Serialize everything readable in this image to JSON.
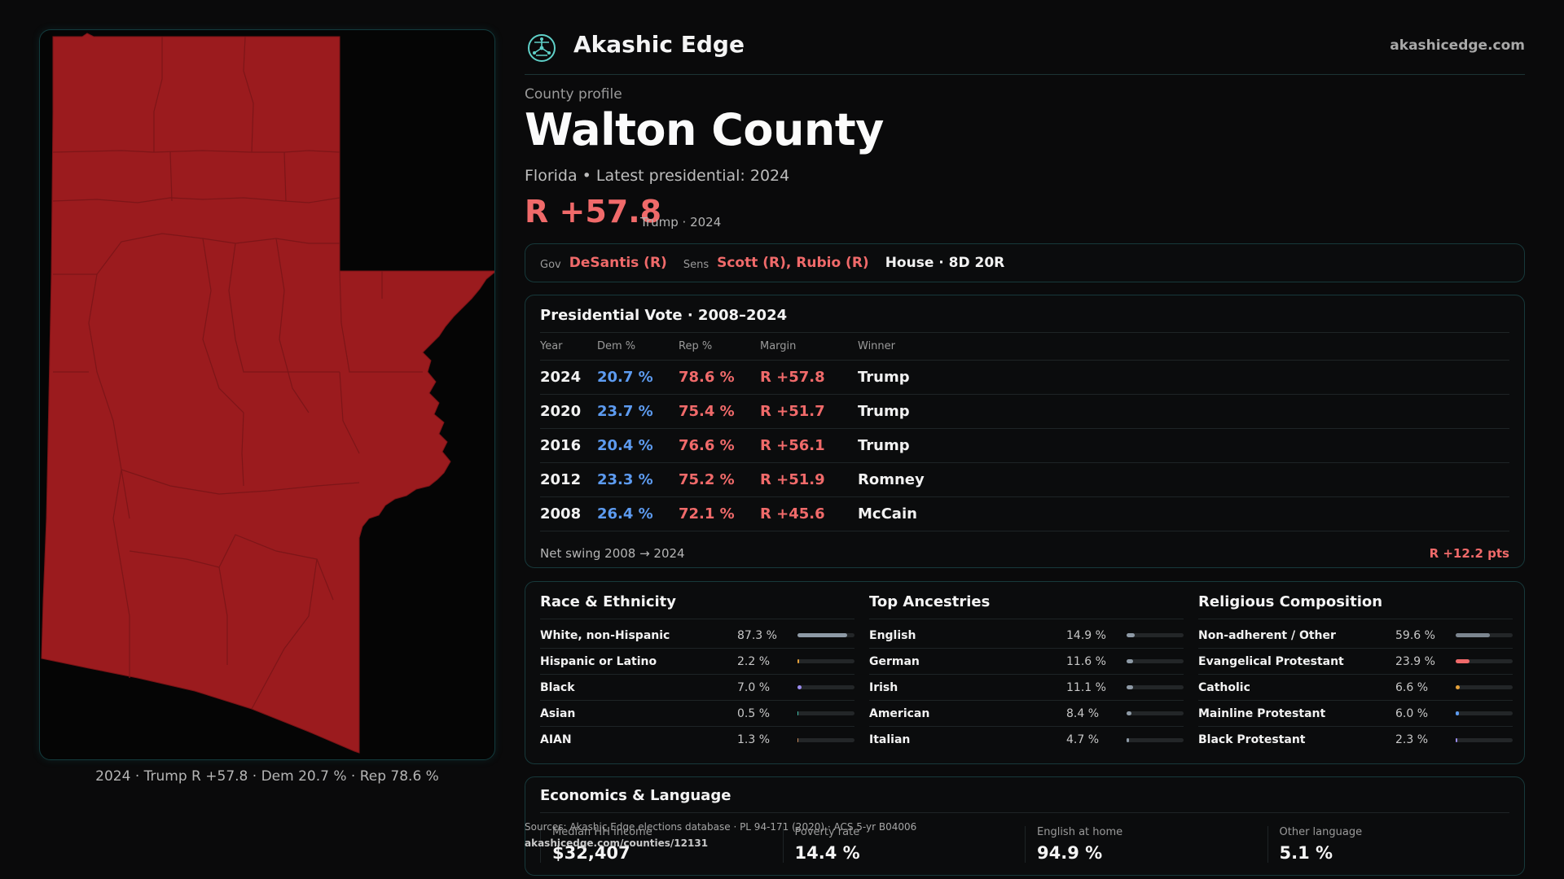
{
  "map": {
    "caption": "2024 · Trump R +57.8 · Dem 20.7 % · Rep 78.6 %",
    "fill_color": "#9b1b1e"
  },
  "header": {
    "brand": "Akashic Edge",
    "site": "akashicedge.com",
    "logo_icon": "network-globe-icon"
  },
  "profile": {
    "eyebrow": "County profile",
    "county": "Walton County",
    "subtitle": "Florida • Latest presidential: 2024",
    "margin": "R +57.8",
    "margin_note": "Trump · 2024"
  },
  "officials": {
    "gov_label": "Gov",
    "gov": "DeSantis (R)",
    "sens_label": "Sens",
    "sens": "Scott (R), Rubio (R)",
    "house": "House · 8D 20R"
  },
  "presidential": {
    "title": "Presidential Vote · 2008–2024",
    "headers": [
      "Year",
      "Dem %",
      "Rep %",
      "Margin",
      "Winner"
    ],
    "rows": [
      {
        "year": "2024",
        "dem": "20.7 %",
        "rep": "78.6 %",
        "margin": "R +57.8",
        "winner": "Trump"
      },
      {
        "year": "2020",
        "dem": "23.7 %",
        "rep": "75.4 %",
        "margin": "R +51.7",
        "winner": "Trump"
      },
      {
        "year": "2016",
        "dem": "20.4 %",
        "rep": "76.6 %",
        "margin": "R +56.1",
        "winner": "Trump"
      },
      {
        "year": "2012",
        "dem": "23.3 %",
        "rep": "75.2 %",
        "margin": "R +51.9",
        "winner": "Romney"
      },
      {
        "year": "2008",
        "dem": "26.4 %",
        "rep": "72.1 %",
        "margin": "R +45.6",
        "winner": "McCain"
      }
    ],
    "swing_label": "Net swing 2008 → 2024",
    "swing_value": "R +12.2 pts"
  },
  "race": {
    "title": "Race & Ethnicity",
    "rows": [
      {
        "label": "White, non-Hispanic",
        "value": "87.3 %",
        "pct": 87.3,
        "color": "#8e9aa6"
      },
      {
        "label": "Hispanic or Latino",
        "value": "2.2 %",
        "pct": 2.2,
        "color": "#e5a13a"
      },
      {
        "label": "Black",
        "value": "7.0 %",
        "pct": 7.0,
        "color": "#9b8cf0"
      },
      {
        "label": "Asian",
        "value": "0.5 %",
        "pct": 0.5,
        "color": "#3fbfa8"
      },
      {
        "label": "AIAN",
        "value": "1.3 %",
        "pct": 1.3,
        "color": "#c98a5a"
      }
    ]
  },
  "ancestry": {
    "title": "Top Ancestries",
    "rows": [
      {
        "label": "English",
        "value": "14.9 %",
        "pct": 14.9,
        "color": "#8e9aa6"
      },
      {
        "label": "German",
        "value": "11.6 %",
        "pct": 11.6,
        "color": "#8e9aa6"
      },
      {
        "label": "Irish",
        "value": "11.1 %",
        "pct": 11.1,
        "color": "#8e9aa6"
      },
      {
        "label": "American",
        "value": "8.4 %",
        "pct": 8.4,
        "color": "#8e9aa6"
      },
      {
        "label": "Italian",
        "value": "4.7 %",
        "pct": 4.7,
        "color": "#8e9aa6"
      }
    ]
  },
  "religion": {
    "title": "Religious Composition",
    "rows": [
      {
        "label": "Non-adherent / Other",
        "value": "59.6 %",
        "pct": 59.6,
        "color": "#7c8690"
      },
      {
        "label": "Evangelical Protestant",
        "value": "23.9 %",
        "pct": 23.9,
        "color": "#f06a6a"
      },
      {
        "label": "Catholic",
        "value": "6.6 %",
        "pct": 6.6,
        "color": "#e5a13a"
      },
      {
        "label": "Mainline Protestant",
        "value": "6.0 %",
        "pct": 6.0,
        "color": "#5d9bf0"
      },
      {
        "label": "Black Protestant",
        "value": "2.3 %",
        "pct": 2.3,
        "color": "#9b8cf0"
      }
    ]
  },
  "economics": {
    "title": "Economics & Language",
    "cells": [
      {
        "label": "Median HH income",
        "value": "$32,407"
      },
      {
        "label": "Poverty rate",
        "value": "14.4 %"
      },
      {
        "label": "English at home",
        "value": "94.9 %"
      },
      {
        "label": "Other language",
        "value": "5.1 %"
      }
    ]
  },
  "footer": {
    "sources": "Sources: Akashic Edge elections database · PL 94-171 (2020) · ACS 5-yr B04006",
    "url": "akashicedge.com/counties/12131"
  }
}
